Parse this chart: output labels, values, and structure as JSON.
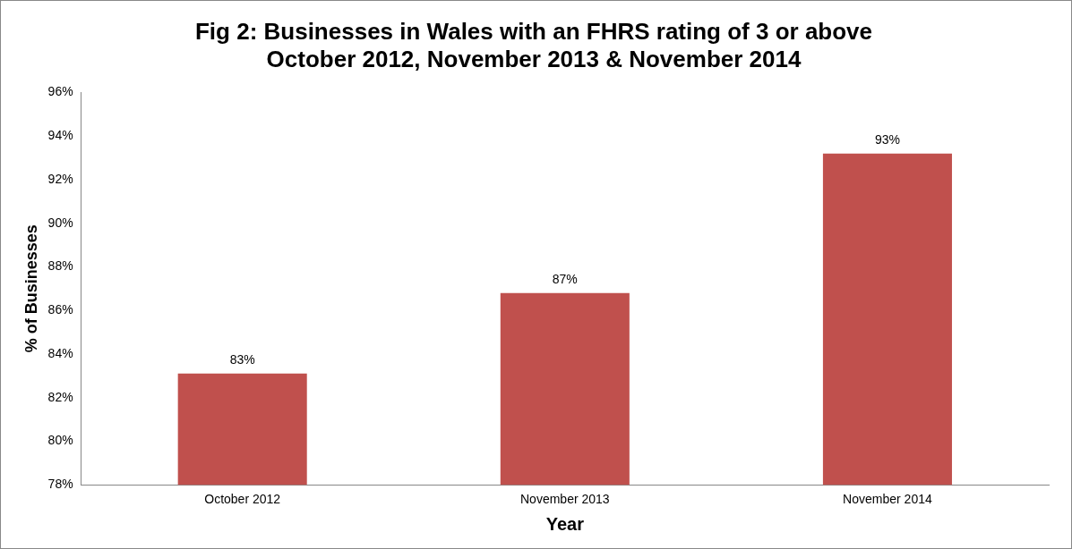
{
  "chart_data": {
    "type": "bar",
    "title": "Fig 2: Businesses in Wales with an FHRS rating of 3 or above\nOctober 2012, November 2013 & November 2014",
    "xlabel": "Year",
    "ylabel": "% of Businesses",
    "categories": [
      "October 2012",
      "November 2013",
      "November 2014"
    ],
    "values": [
      83.1,
      86.8,
      93.2
    ],
    "color": "#c0504d",
    "value_labels": [
      "83%",
      "87%",
      "93%"
    ],
    "ylim": [
      78,
      96
    ],
    "yticks": [
      {
        "value": 78,
        "label": "78%"
      },
      {
        "value": 80,
        "label": "80%"
      },
      {
        "value": 82,
        "label": "82%"
      },
      {
        "value": 84,
        "label": "84%"
      },
      {
        "value": 86,
        "label": "86%"
      },
      {
        "value": 88,
        "label": "88%"
      },
      {
        "value": 90,
        "label": "90%"
      },
      {
        "value": 92,
        "label": "92%"
      },
      {
        "value": 94,
        "label": "94%"
      },
      {
        "value": 96,
        "label": "96%"
      }
    ],
    "grid": false,
    "legend": false
  }
}
